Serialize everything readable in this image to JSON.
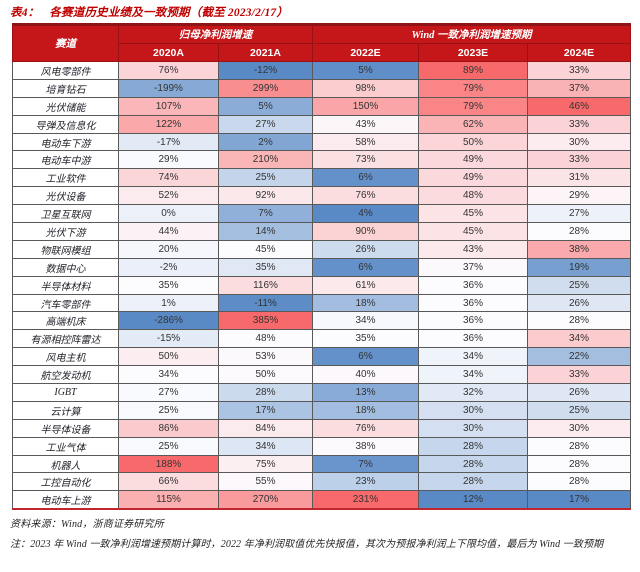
{
  "title": {
    "prefix": "表4：",
    "text": "各赛道历史业绩及一致预期（截至 2023/2/17）"
  },
  "table": {
    "sector_header": "赛道",
    "group_historical": "归母净利润增速",
    "group_forecast": "Wind 一致净利润增速预期",
    "year_headers": [
      "2020A",
      "2021A",
      "2022E",
      "2023E",
      "2024E"
    ],
    "value_suffix": "%",
    "rows": [
      {
        "sector": "风电零部件",
        "values": [
          76,
          -12,
          5,
          89,
          33
        ]
      },
      {
        "sector": "培育钻石",
        "values": [
          -199,
          299,
          98,
          79,
          37
        ]
      },
      {
        "sector": "光伏储能",
        "values": [
          107,
          5,
          150,
          79,
          46
        ]
      },
      {
        "sector": "导弹及信息化",
        "values": [
          122,
          27,
          43,
          62,
          33
        ]
      },
      {
        "sector": "电动车下游",
        "values": [
          -17,
          2,
          58,
          50,
          30
        ]
      },
      {
        "sector": "电动车中游",
        "values": [
          29,
          210,
          73,
          49,
          33
        ]
      },
      {
        "sector": "工业软件",
        "values": [
          74,
          25,
          6,
          49,
          31
        ]
      },
      {
        "sector": "光伏设备",
        "values": [
          52,
          92,
          76,
          48,
          29
        ]
      },
      {
        "sector": "卫星互联网",
        "values": [
          0,
          7,
          4,
          45,
          27
        ]
      },
      {
        "sector": "光伏下游",
        "values": [
          44,
          14,
          90,
          45,
          28
        ]
      },
      {
        "sector": "物联网模组",
        "values": [
          20,
          45,
          26,
          43,
          38
        ]
      },
      {
        "sector": "数据中心",
        "values": [
          -2,
          35,
          6,
          37,
          19
        ]
      },
      {
        "sector": "半导体材料",
        "values": [
          35,
          116,
          61,
          36,
          25
        ]
      },
      {
        "sector": "汽车零部件",
        "values": [
          1,
          -11,
          18,
          36,
          26
        ]
      },
      {
        "sector": "高端机床",
        "values": [
          -286,
          385,
          34,
          36,
          28
        ]
      },
      {
        "sector": "有源相控阵雷达",
        "values": [
          -15,
          48,
          35,
          36,
          34
        ]
      },
      {
        "sector": "风电主机",
        "values": [
          50,
          53,
          6,
          34,
          22
        ]
      },
      {
        "sector": "航空发动机",
        "values": [
          34,
          50,
          40,
          34,
          33
        ]
      },
      {
        "sector": "IGBT",
        "values": [
          27,
          28,
          13,
          32,
          26
        ]
      },
      {
        "sector": "云计算",
        "values": [
          25,
          17,
          18,
          30,
          25
        ]
      },
      {
        "sector": "半导体设备",
        "values": [
          86,
          84,
          76,
          30,
          30
        ]
      },
      {
        "sector": "工业气体",
        "values": [
          25,
          34,
          38,
          28,
          28
        ]
      },
      {
        "sector": "机器人",
        "values": [
          188,
          75,
          7,
          28,
          28
        ]
      },
      {
        "sector": "工控自动化",
        "values": [
          66,
          55,
          23,
          28,
          28
        ]
      },
      {
        "sector": "电动车上游",
        "values": [
          115,
          270,
          231,
          12,
          17
        ]
      }
    ]
  },
  "colors": {
    "header_bg": "#C5161A",
    "header_border": "#9A1114",
    "title_text": "#C00000",
    "scale_min": "#5A8AC6",
    "scale_mid": "#FCFCFF",
    "scale_max": "#F8696B",
    "cell_text": "#333333"
  },
  "footer": {
    "source": "资料来源：Wind，浙商证券研究所",
    "note": "注：2023 年 Wind 一致净利润增速预期计算时，2022 年净利润取值优先快报值，其次为预报净利润上下限均值，最后为 Wind 一致预期"
  }
}
